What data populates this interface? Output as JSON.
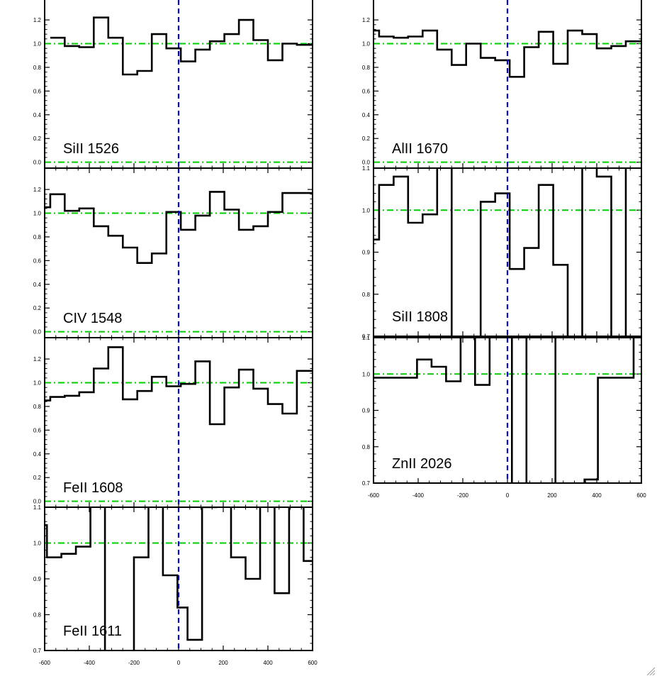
{
  "colors": {
    "spectrum": "#000000",
    "continuum": "#00cc00",
    "zero_velocity": "#0000cc",
    "frame": "#000000"
  },
  "chart_data": [
    {
      "type": "line",
      "step": true,
      "label": "SiII 1526",
      "xlim": [
        -600,
        600
      ],
      "ylim": [
        -0.05,
        1.38
      ],
      "yticks": [
        0.0,
        0.2,
        0.4,
        0.6,
        0.8,
        1.0,
        1.2
      ],
      "ytick_labels": [
        "0.0",
        "0.2",
        "0.4",
        "0.6",
        "0.8",
        "1.0",
        "1.2"
      ],
      "show_xticks": false,
      "xticks": [],
      "xtick_labels": [],
      "hlines": [
        0.0,
        1.0
      ],
      "vline": 0,
      "x": [
        -575,
        -510,
        -445,
        -380,
        -315,
        -250,
        -185,
        -120,
        -55,
        10,
        75,
        140,
        205,
        270,
        335,
        400,
        465,
        530
      ],
      "y": [
        1.05,
        0.98,
        0.97,
        1.22,
        1.05,
        0.74,
        0.77,
        1.08,
        0.96,
        0.85,
        0.95,
        1.02,
        1.08,
        1.2,
        1.03,
        0.86,
        1.0,
        0.99
      ]
    },
    {
      "type": "line",
      "step": true,
      "label": "CIV 1548",
      "xlim": [
        -600,
        600
      ],
      "ylim": [
        -0.05,
        1.38
      ],
      "yticks": [
        0.0,
        0.2,
        0.4,
        0.6,
        0.8,
        1.0,
        1.2
      ],
      "ytick_labels": [
        "0.0",
        "0.2",
        "0.4",
        "0.6",
        "0.8",
        "1.0",
        "1.2"
      ],
      "show_xticks": false,
      "xticks": [],
      "xtick_labels": [],
      "hlines": [
        0.0,
        1.0
      ],
      "vline": 0,
      "x": [
        -600,
        -575,
        -510,
        -445,
        -380,
        -315,
        -250,
        -185,
        -120,
        -55,
        10,
        75,
        140,
        205,
        270,
        335,
        400,
        465,
        530
      ],
      "y": [
        1.05,
        1.16,
        1.02,
        1.04,
        0.89,
        0.81,
        0.71,
        0.58,
        0.66,
        1.01,
        0.86,
        0.98,
        1.18,
        1.03,
        0.86,
        0.89,
        1.01,
        1.17,
        1.17
      ]
    },
    {
      "type": "line",
      "step": true,
      "label": "FeII 1608",
      "xlim": [
        -600,
        600
      ],
      "ylim": [
        -0.05,
        1.38
      ],
      "yticks": [
        0.0,
        0.2,
        0.4,
        0.6,
        0.8,
        1.0,
        1.2
      ],
      "ytick_labels": [
        "0.0",
        "0.2",
        "0.4",
        "0.6",
        "0.8",
        "1.0",
        "1.2"
      ],
      "show_xticks": false,
      "xticks": [],
      "xtick_labels": [],
      "hlines": [
        0.0,
        1.0
      ],
      "vline": 0,
      "x": [
        -600,
        -575,
        -510,
        -445,
        -380,
        -315,
        -250,
        -185,
        -120,
        -55,
        10,
        75,
        140,
        205,
        270,
        335,
        400,
        465,
        530
      ],
      "y": [
        0.85,
        0.88,
        0.89,
        0.92,
        1.12,
        1.3,
        0.86,
        0.93,
        1.05,
        0.97,
        0.99,
        1.18,
        0.65,
        0.96,
        1.11,
        0.95,
        0.82,
        0.74,
        1.1
      ]
    },
    {
      "type": "line",
      "step": true,
      "label": "FeII 1611",
      "xlim": [
        -600,
        600
      ],
      "ylim": [
        0.7,
        1.1
      ],
      "yticks": [
        0.7,
        0.8,
        0.9,
        1.0,
        1.1
      ],
      "ytick_labels": [
        "0.7",
        "0.8",
        "0.9",
        "1.0",
        "1.1"
      ],
      "show_xticks": true,
      "xticks": [
        -600,
        -400,
        -200,
        0,
        200,
        400,
        600
      ],
      "xtick_labels": [
        "-600",
        "-400",
        "-200",
        "0",
        "200",
        "400",
        "600"
      ],
      "hlines": [
        1.0
      ],
      "vline": 0,
      "x": [
        -600,
        -590,
        -525,
        -460,
        -395,
        -330,
        -265,
        -200,
        -135,
        -70,
        -5,
        40,
        105,
        170,
        235,
        300,
        365,
        430,
        495,
        560
      ],
      "y": [
        1.05,
        0.96,
        0.97,
        0.99,
        1.2,
        0.6,
        0.6,
        0.96,
        1.12,
        0.91,
        0.82,
        0.73,
        1.1,
        1.2,
        0.96,
        0.9,
        1.2,
        0.86,
        1.2,
        0.95
      ]
    },
    {
      "type": "line",
      "step": true,
      "label": "AlII 1670",
      "xlim": [
        -600,
        600
      ],
      "ylim": [
        -0.05,
        1.38
      ],
      "yticks": [
        0.0,
        0.2,
        0.4,
        0.6,
        0.8,
        1.0,
        1.2
      ],
      "ytick_labels": [
        "0.0",
        "0.2",
        "0.4",
        "0.6",
        "0.8",
        "1.0",
        "1.2"
      ],
      "show_xticks": false,
      "xticks": [],
      "xtick_labels": [],
      "hlines": [
        0.0,
        1.0
      ],
      "vline": 0,
      "x": [
        -600,
        -575,
        -510,
        -445,
        -380,
        -315,
        -250,
        -185,
        -120,
        -55,
        10,
        75,
        140,
        205,
        270,
        335,
        400,
        465,
        530
      ],
      "y": [
        1.11,
        1.06,
        1.05,
        1.06,
        1.11,
        0.95,
        0.82,
        1.0,
        0.88,
        0.86,
        0.72,
        0.97,
        1.1,
        0.83,
        1.11,
        1.08,
        0.96,
        0.98,
        1.02
      ]
    },
    {
      "type": "line",
      "step": true,
      "label": "SiII 1808",
      "xlim": [
        -600,
        600
      ],
      "ylim": [
        0.7,
        1.1
      ],
      "yticks": [
        0.7,
        0.8,
        0.9,
        1.0,
        1.1
      ],
      "ytick_labels": [
        "0.7",
        "0.8",
        "0.9",
        "1.0",
        "1.1"
      ],
      "show_xticks": false,
      "xticks": [],
      "xtick_labels": [],
      "hlines": [
        1.0
      ],
      "vline": 0,
      "x": [
        -600,
        -575,
        -510,
        -445,
        -380,
        -315,
        -250,
        -185,
        -120,
        -55,
        10,
        75,
        140,
        205,
        270,
        335,
        400,
        465,
        530
      ],
      "y": [
        0.93,
        1.06,
        1.08,
        0.97,
        0.99,
        1.2,
        0.6,
        0.6,
        1.02,
        1.04,
        0.86,
        0.91,
        1.06,
        0.87,
        0.6,
        1.2,
        1.08,
        0.6,
        1.2
      ]
    },
    {
      "type": "line",
      "step": true,
      "label": "ZnII 2026",
      "xlim": [
        -600,
        600
      ],
      "ylim": [
        0.7,
        1.1
      ],
      "yticks": [
        0.7,
        0.8,
        0.9,
        1.0,
        1.1
      ],
      "ytick_labels": [
        "0.7",
        "0.8",
        "0.9",
        "1.0",
        "1.1"
      ],
      "show_xticks": true,
      "xticks": [
        -600,
        -400,
        -200,
        0,
        200,
        400,
        600
      ],
      "xtick_labels": [
        "-600",
        "-400",
        "-200",
        "0",
        "200",
        "400",
        "600"
      ],
      "hlines": [
        1.0
      ],
      "vline": 0,
      "x": [
        -600,
        -470,
        -405,
        -340,
        -275,
        -210,
        -145,
        -80,
        20,
        85,
        215,
        280,
        345,
        405,
        565
      ],
      "y": [
        0.99,
        0.99,
        1.04,
        1.02,
        0.98,
        1.2,
        0.97,
        1.2,
        0.6,
        1.2,
        0.6,
        0.6,
        0.71,
        0.99,
        1.2
      ]
    }
  ]
}
